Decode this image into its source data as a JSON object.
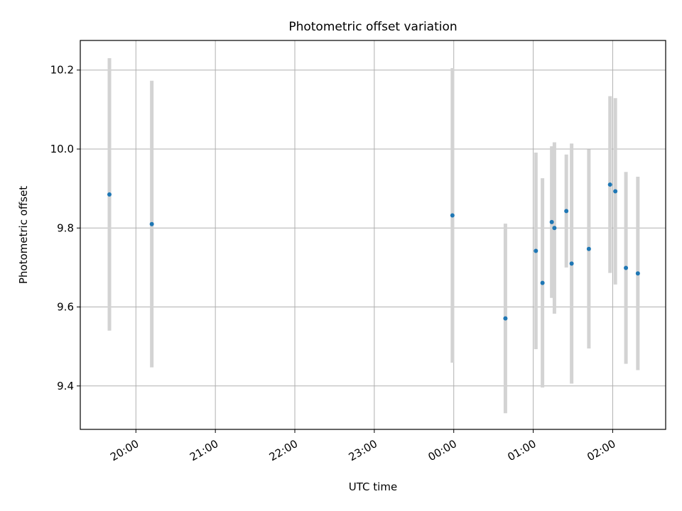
{
  "chart_data": {
    "type": "scatter",
    "title": "Photometric offset variation",
    "xlabel": "UTC time",
    "ylabel": "Photometric offset",
    "grid": true,
    "x_range": [
      "19:18",
      "02:40"
    ],
    "ylim": [
      9.29,
      10.275
    ],
    "x_ticks": [
      {
        "value": "20:00",
        "label": "20:00"
      },
      {
        "value": "21:00",
        "label": "21:00"
      },
      {
        "value": "22:00",
        "label": "22:00"
      },
      {
        "value": "23:00",
        "label": "23:00"
      },
      {
        "value": "00:00",
        "label": "00:00"
      },
      {
        "value": "01:00",
        "label": "01:00"
      },
      {
        "value": "02:00",
        "label": "02:00"
      }
    ],
    "y_ticks": [
      {
        "value": 9.4,
        "label": "9.4"
      },
      {
        "value": 9.6,
        "label": "9.6"
      },
      {
        "value": 9.8,
        "label": "9.8"
      },
      {
        "value": 10.0,
        "label": "10.0"
      },
      {
        "value": 10.2,
        "label": "10.2"
      }
    ],
    "point_color": "#1f77b4",
    "errorbar_color": "#d3d3d3",
    "points": [
      {
        "x": "19:40",
        "y": 9.885,
        "err": 0.345
      },
      {
        "x": "20:12",
        "y": 9.81,
        "err": 0.363
      },
      {
        "x": "23:59",
        "y": 9.832,
        "err": 0.373
      },
      {
        "x": "00:39",
        "y": 9.571,
        "err": 0.24
      },
      {
        "x": "01:02",
        "y": 9.742,
        "err": 0.249
      },
      {
        "x": "01:07",
        "y": 9.661,
        "err": 0.265
      },
      {
        "x": "01:14",
        "y": 9.815,
        "err": 0.192
      },
      {
        "x": "01:16",
        "y": 9.8,
        "err": 0.217
      },
      {
        "x": "01:25",
        "y": 9.843,
        "err": 0.143
      },
      {
        "x": "01:29",
        "y": 9.71,
        "err": 0.304
      },
      {
        "x": "01:42",
        "y": 9.747,
        "err": 0.252
      },
      {
        "x": "01:58",
        "y": 9.91,
        "err": 0.224
      },
      {
        "x": "02:02",
        "y": 9.893,
        "err": 0.236
      },
      {
        "x": "02:10",
        "y": 9.699,
        "err": 0.243
      },
      {
        "x": "02:19",
        "y": 9.685,
        "err": 0.245
      }
    ]
  }
}
